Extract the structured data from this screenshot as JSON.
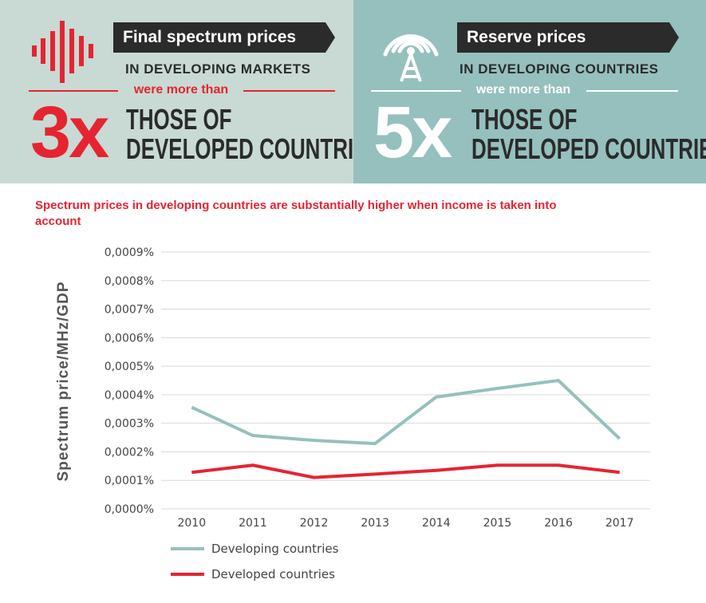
{
  "left_panel": {
    "banner": "Final spectrum prices",
    "subtitle": "IN DEVELOPING MARKETS",
    "connector": "were more than",
    "big_number": "3x",
    "line1": "THOSE OF",
    "line2": "DEVELOPED COUNTRIES",
    "icon": "sound-wave-icon"
  },
  "right_panel": {
    "banner": "Reserve prices",
    "subtitle": "IN DEVELOPING COUNTRIES",
    "connector": "were more than",
    "big_number": "5x",
    "line1": "THOSE OF",
    "line2": "DEVELOPED COUNTRIES",
    "icon": "antenna-tower-icon"
  },
  "colors": {
    "accent_red": "#e52432",
    "developing": "#95c0bd",
    "developed": "#e52432",
    "left_bg": "#c8dad3",
    "right_bg": "#95c0bd",
    "banner_bg": "#2b2b2b"
  },
  "chart_data": {
    "type": "line",
    "title": "Spectrum prices in developing countries are substantially higher when income is taken into account",
    "xlabel": "",
    "ylabel": "Spectrum price/MHz/GDP",
    "categories": [
      "2010",
      "2011",
      "2012",
      "2013",
      "2014",
      "2015",
      "2016",
      "2017"
    ],
    "y_ticks": [
      "0,0000%",
      "0,0001%",
      "0,0002%",
      "0,0003%",
      "0,0004%",
      "0,0005%",
      "0,0006%",
      "0,0007%",
      "0,0008%",
      "0,0009%"
    ],
    "ylim": [
      0,
      0.0009
    ],
    "grid": true,
    "legend_position": "bottom",
    "series": [
      {
        "name": "Developing countries",
        "color": "#95c0bd",
        "values": [
          0.000356,
          0.000257,
          0.00024,
          0.000229,
          0.000392,
          0.000422,
          0.00045,
          0.000246
        ]
      },
      {
        "name": "Developed countries",
        "color": "#e52432",
        "values": [
          0.000128,
          0.000153,
          0.00011,
          0.000122,
          0.000135,
          0.000153,
          0.000153,
          0.000128
        ]
      }
    ]
  }
}
